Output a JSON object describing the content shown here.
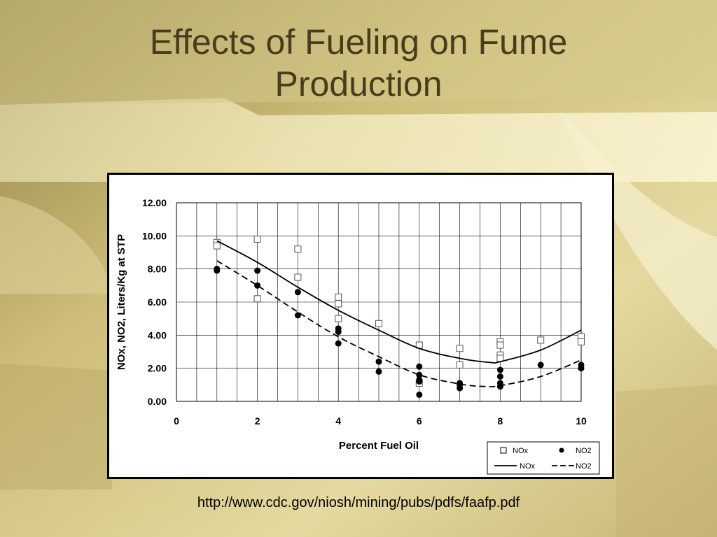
{
  "slide": {
    "title_line1": "Effects of Fueling on Fume",
    "title_line2": "Production",
    "source_url": "http://www.cdc.gov/niosh/mining/pubs/pdfs/faafp.pdf"
  },
  "colors": {
    "title": "#4a3b1c",
    "background_light": "#efe6ae",
    "background_dark": "#b3a05e"
  },
  "chart_data": {
    "type": "scatter",
    "title": "",
    "xlabel": "Percent Fuel Oil",
    "ylabel": "NOx, NO2, Liters/Kg at STP",
    "xlim": [
      0,
      10
    ],
    "ylim": [
      0,
      12
    ],
    "x_ticks": [
      0,
      2,
      4,
      6,
      8,
      10
    ],
    "x_tick_labels": [
      "0",
      "2",
      "4",
      "6",
      "8",
      "10"
    ],
    "y_ticks": [
      0,
      2,
      4,
      6,
      8,
      10,
      12
    ],
    "y_tick_labels": [
      "0.00",
      "2.00",
      "4.00",
      "6.00",
      "8.00",
      "10.00",
      "12.00"
    ],
    "grid": true,
    "legend_position": "bottom-right",
    "series": [
      {
        "name": "NOx",
        "kind": "points",
        "marker": "open-square",
        "points": [
          [
            1,
            9.6
          ],
          [
            1,
            9.4
          ],
          [
            2,
            9.8
          ],
          [
            2,
            6.2
          ],
          [
            3,
            9.2
          ],
          [
            3,
            7.5
          ],
          [
            4,
            6.3
          ],
          [
            4,
            5.9
          ],
          [
            4,
            5.0
          ],
          [
            5,
            4.7
          ],
          [
            6,
            3.4
          ],
          [
            6,
            1.1
          ],
          [
            7,
            3.2
          ],
          [
            7,
            2.2
          ],
          [
            8,
            3.6
          ],
          [
            8,
            3.4
          ],
          [
            8,
            2.8
          ],
          [
            8,
            2.6
          ],
          [
            9,
            3.7
          ],
          [
            10,
            3.9
          ],
          [
            10,
            3.6
          ]
        ]
      },
      {
        "name": "NO2",
        "kind": "points",
        "marker": "filled-circle",
        "points": [
          [
            1,
            8.0
          ],
          [
            1,
            7.9
          ],
          [
            2,
            7.9
          ],
          [
            2,
            7.0
          ],
          [
            3,
            6.6
          ],
          [
            3,
            5.2
          ],
          [
            4,
            4.4
          ],
          [
            4,
            4.2
          ],
          [
            4,
            3.5
          ],
          [
            5,
            2.4
          ],
          [
            5,
            1.8
          ],
          [
            6,
            2.1
          ],
          [
            6,
            1.6
          ],
          [
            6,
            1.3
          ],
          [
            6,
            1.2
          ],
          [
            6,
            0.4
          ],
          [
            7,
            1.1
          ],
          [
            7,
            1.0
          ],
          [
            7,
            0.8
          ],
          [
            8,
            1.9
          ],
          [
            8,
            1.5
          ],
          [
            8,
            1.1
          ],
          [
            8,
            0.9
          ],
          [
            9,
            2.2
          ],
          [
            10,
            2.2
          ],
          [
            10,
            2.0
          ]
        ]
      },
      {
        "name": "NOx",
        "kind": "line",
        "style": "solid",
        "points": [
          [
            1,
            9.7
          ],
          [
            2,
            8.4
          ],
          [
            3,
            6.9
          ],
          [
            4,
            5.5
          ],
          [
            5,
            4.3
          ],
          [
            6,
            3.2
          ],
          [
            7,
            2.6
          ],
          [
            7.75,
            2.35
          ],
          [
            8,
            2.4
          ],
          [
            9,
            3.1
          ],
          [
            10,
            4.3
          ]
        ]
      },
      {
        "name": "NO2",
        "kind": "line",
        "style": "dashed",
        "points": [
          [
            1,
            8.5
          ],
          [
            2,
            7.0
          ],
          [
            3,
            5.4
          ],
          [
            4,
            3.9
          ],
          [
            5,
            2.7
          ],
          [
            6,
            1.6
          ],
          [
            7,
            1.05
          ],
          [
            7.6,
            0.9
          ],
          [
            8,
            0.95
          ],
          [
            9,
            1.5
          ],
          [
            10,
            2.5
          ]
        ]
      }
    ]
  }
}
